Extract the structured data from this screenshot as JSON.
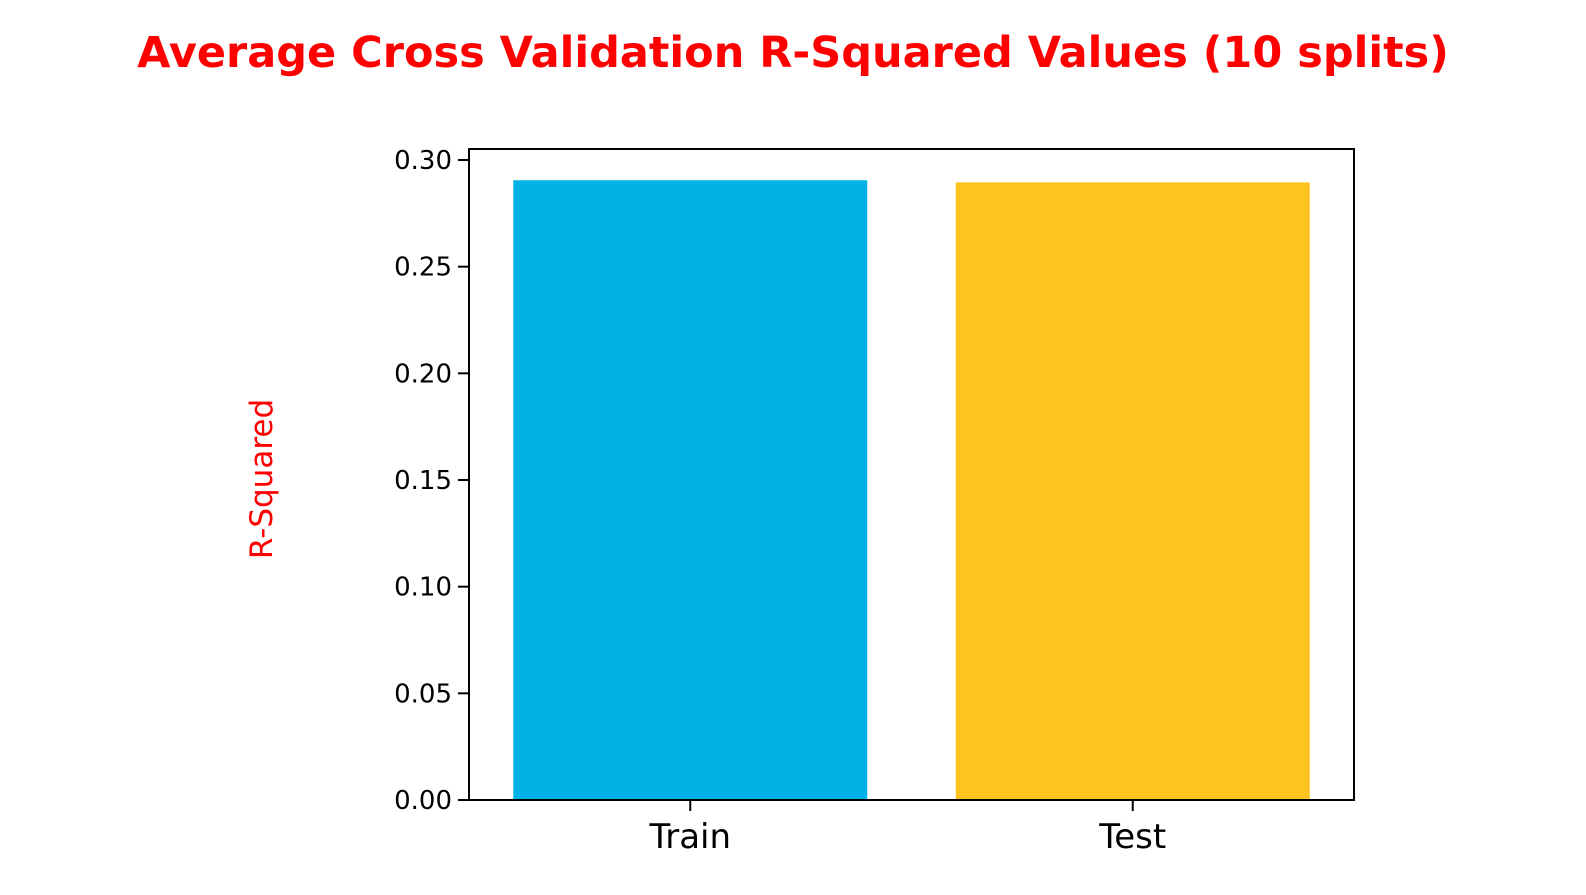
{
  "chart_data": {
    "type": "bar",
    "title": "Average Cross Validation R-Squared Values (10 splits)",
    "xlabel": "",
    "ylabel": "R-Squared",
    "categories": [
      "Train",
      "Test"
    ],
    "values": [
      0.2905,
      0.2895
    ],
    "bar_colors": [
      "#00b2e5",
      "#fec31f"
    ],
    "ylim": [
      0,
      0.305
    ],
    "yticks": [
      0.0,
      0.05,
      0.1,
      0.15,
      0.2,
      0.25,
      0.3
    ],
    "ytick_labels": [
      "0.00",
      "0.05",
      "0.10",
      "0.15",
      "0.20",
      "0.25",
      "0.30"
    ],
    "grid": false,
    "legend": "none",
    "title_color": "#ff0000",
    "ylabel_color": "#ff0000"
  }
}
